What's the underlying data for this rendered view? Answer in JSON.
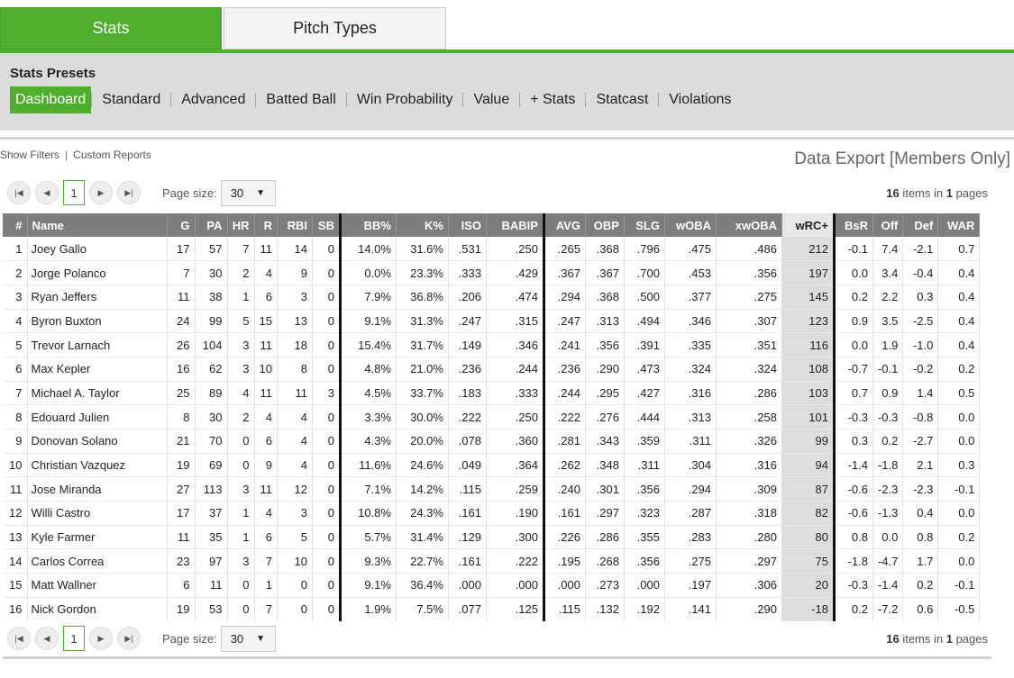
{
  "tabs": [
    {
      "label": "Stats"
    },
    {
      "label": "Pitch Types"
    }
  ],
  "presets": {
    "title": "Stats Presets",
    "items": [
      "Dashboard",
      "Standard",
      "Advanced",
      "Batted Ball",
      "Win Probability",
      "Value",
      "+ Stats",
      "Statcast",
      "Violations"
    ],
    "active": "Dashboard"
  },
  "links": {
    "show_filters": "Show Filters",
    "separator": "|",
    "custom_reports": "Custom Reports"
  },
  "export_label": "Data Export [Members Only]",
  "pager": {
    "current_page": "1",
    "page_size_label": "Page size:",
    "page_size": "30",
    "items_count": "16",
    "items_text": " items in ",
    "pages_count": "1",
    "pages_text": " pages"
  },
  "table": {
    "columns": [
      "#",
      "Name",
      "G",
      "PA",
      "HR",
      "R",
      "RBI",
      "SB",
      "BB%",
      "K%",
      "ISO",
      "BABIP",
      "AVG",
      "OBP",
      "SLG",
      "wOBA",
      "xwOBA",
      "wRC+",
      "BsR",
      "Off",
      "Def",
      "WAR"
    ],
    "rows": [
      [
        "1",
        "Joey Gallo",
        "17",
        "57",
        "7",
        "11",
        "14",
        "0",
        "14.0%",
        "31.6%",
        ".531",
        ".250",
        ".265",
        ".368",
        ".796",
        ".475",
        ".486",
        "212",
        "-0.1",
        "7.4",
        "-2.1",
        "0.7"
      ],
      [
        "2",
        "Jorge Polanco",
        "7",
        "30",
        "2",
        "4",
        "9",
        "0",
        "0.0%",
        "23.3%",
        ".333",
        ".429",
        ".367",
        ".367",
        ".700",
        ".453",
        ".356",
        "197",
        "0.0",
        "3.4",
        "-0.4",
        "0.4"
      ],
      [
        "3",
        "Ryan Jeffers",
        "11",
        "38",
        "1",
        "6",
        "3",
        "0",
        "7.9%",
        "36.8%",
        ".206",
        ".474",
        ".294",
        ".368",
        ".500",
        ".377",
        ".275",
        "145",
        "0.2",
        "2.2",
        "0.3",
        "0.4"
      ],
      [
        "4",
        "Byron Buxton",
        "24",
        "99",
        "5",
        "15",
        "13",
        "0",
        "9.1%",
        "31.3%",
        ".247",
        ".315",
        ".247",
        ".313",
        ".494",
        ".346",
        ".307",
        "123",
        "0.9",
        "3.5",
        "-2.5",
        "0.4"
      ],
      [
        "5",
        "Trevor Larnach",
        "26",
        "104",
        "3",
        "11",
        "18",
        "0",
        "15.4%",
        "31.7%",
        ".149",
        ".346",
        ".241",
        ".356",
        ".391",
        ".335",
        ".351",
        "116",
        "0.0",
        "1.9",
        "-1.0",
        "0.4"
      ],
      [
        "6",
        "Max Kepler",
        "16",
        "62",
        "3",
        "10",
        "8",
        "0",
        "4.8%",
        "21.0%",
        ".236",
        ".244",
        ".236",
        ".290",
        ".473",
        ".324",
        ".324",
        "108",
        "-0.7",
        "-0.1",
        "-0.2",
        "0.2"
      ],
      [
        "7",
        "Michael A. Taylor",
        "25",
        "89",
        "4",
        "11",
        "11",
        "3",
        "4.5%",
        "33.7%",
        ".183",
        ".333",
        ".244",
        ".295",
        ".427",
        ".316",
        ".286",
        "103",
        "0.7",
        "0.9",
        "1.4",
        "0.5"
      ],
      [
        "8",
        "Edouard Julien",
        "8",
        "30",
        "2",
        "4",
        "4",
        "0",
        "3.3%",
        "30.0%",
        ".222",
        ".250",
        ".222",
        ".276",
        ".444",
        ".313",
        ".258",
        "101",
        "-0.3",
        "-0.3",
        "-0.8",
        "0.0"
      ],
      [
        "9",
        "Donovan Solano",
        "21",
        "70",
        "0",
        "6",
        "4",
        "0",
        "4.3%",
        "20.0%",
        ".078",
        ".360",
        ".281",
        ".343",
        ".359",
        ".311",
        ".326",
        "99",
        "0.3",
        "0.2",
        "-2.7",
        "0.0"
      ],
      [
        "10",
        "Christian Vazquez",
        "19",
        "69",
        "0",
        "9",
        "4",
        "0",
        "11.6%",
        "24.6%",
        ".049",
        ".364",
        ".262",
        ".348",
        ".311",
        ".304",
        ".316",
        "94",
        "-1.4",
        "-1.8",
        "2.1",
        "0.3"
      ],
      [
        "11",
        "Jose Miranda",
        "27",
        "113",
        "3",
        "11",
        "12",
        "0",
        "7.1%",
        "14.2%",
        ".115",
        ".259",
        ".240",
        ".301",
        ".356",
        ".294",
        ".309",
        "87",
        "-0.6",
        "-2.3",
        "-2.3",
        "-0.1"
      ],
      [
        "12",
        "Willi Castro",
        "17",
        "37",
        "1",
        "4",
        "3",
        "0",
        "10.8%",
        "24.3%",
        ".161",
        ".190",
        ".161",
        ".297",
        ".323",
        ".287",
        ".318",
        "82",
        "-0.6",
        "-1.3",
        "0.4",
        "0.0"
      ],
      [
        "13",
        "Kyle Farmer",
        "11",
        "35",
        "1",
        "6",
        "5",
        "0",
        "5.7%",
        "31.4%",
        ".129",
        ".300",
        ".226",
        ".286",
        ".355",
        ".283",
        ".280",
        "80",
        "0.8",
        "0.0",
        "0.8",
        "0.2"
      ],
      [
        "14",
        "Carlos Correa",
        "23",
        "97",
        "3",
        "7",
        "10",
        "0",
        "9.3%",
        "22.7%",
        ".161",
        ".222",
        ".195",
        ".268",
        ".356",
        ".275",
        ".297",
        "75",
        "-1.8",
        "-4.7",
        "1.7",
        "0.0"
      ],
      [
        "15",
        "Matt Wallner",
        "6",
        "11",
        "0",
        "1",
        "0",
        "0",
        "9.1%",
        "36.4%",
        ".000",
        ".000",
        ".000",
        ".273",
        ".000",
        ".197",
        ".306",
        "20",
        "-0.3",
        "-1.4",
        "0.2",
        "-0.1"
      ],
      [
        "16",
        "Nick Gordon",
        "19",
        "53",
        "0",
        "7",
        "0",
        "0",
        "1.9%",
        "7.5%",
        ".077",
        ".125",
        ".115",
        ".132",
        ".192",
        ".141",
        ".290",
        "-18",
        "0.2",
        "-7.2",
        "0.6",
        "-0.5"
      ]
    ]
  },
  "icons": {
    "first": "first-page-icon",
    "prev": "prev-page-icon",
    "next": "next-page-icon",
    "last": "last-page-icon",
    "dropdown": "chevron-down-icon"
  },
  "colors": {
    "accent": "#50ae2e",
    "header_bg": "#7d7d7d",
    "highlight_col": "#dddddd"
  }
}
